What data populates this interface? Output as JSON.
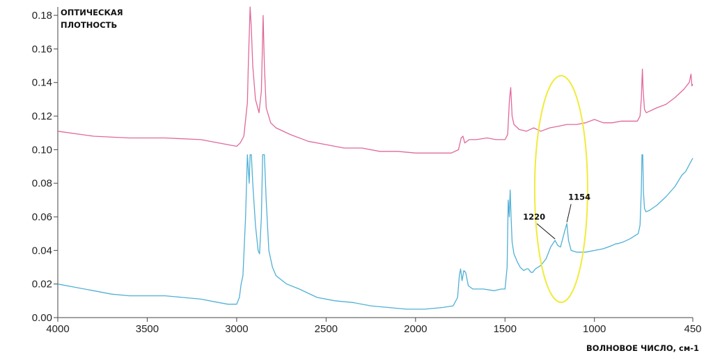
{
  "chart_data": {
    "type": "line",
    "ylabel_line1": "ОПТИЧЕСКАЯ",
    "ylabel_line2": "ПЛОТНОСТЬ",
    "xlabel": "ВОЛНОВОЕ ЧИСЛО, см-1",
    "xlim": [
      4000,
      450
    ],
    "ylim": [
      0,
      0.185
    ],
    "x_reversed": true,
    "grid": false,
    "x_ticks": [
      4000,
      3500,
      3000,
      2500,
      2000,
      1500,
      1000,
      450
    ],
    "x_tick_labels": [
      "4000",
      "3500",
      "3000",
      "2500",
      "2000",
      "1500",
      "1000",
      "450"
    ],
    "y_ticks": [
      0,
      0.02,
      0.04,
      0.06,
      0.08,
      0.1,
      0.12,
      0.14,
      0.16,
      0.18
    ],
    "y_tick_labels": [
      "0.00",
      "0.02",
      "0.04",
      "0.06",
      "0.08",
      "0.10",
      "0.12",
      "0.14",
      "0.16",
      "0.18"
    ],
    "series": [
      {
        "color": "#e0689a",
        "points": [
          [
            4000,
            0.111
          ],
          [
            3800,
            0.108
          ],
          [
            3600,
            0.107
          ],
          [
            3400,
            0.107
          ],
          [
            3200,
            0.106
          ],
          [
            3050,
            0.103
          ],
          [
            3000,
            0.102
          ],
          [
            2980,
            0.104
          ],
          [
            2960,
            0.108
          ],
          [
            2940,
            0.128
          ],
          [
            2935,
            0.15
          ],
          [
            2925,
            0.185
          ],
          [
            2918,
            0.172
          ],
          [
            2910,
            0.15
          ],
          [
            2895,
            0.13
          ],
          [
            2875,
            0.122
          ],
          [
            2862,
            0.135
          ],
          [
            2852,
            0.18
          ],
          [
            2845,
            0.15
          ],
          [
            2835,
            0.125
          ],
          [
            2810,
            0.116
          ],
          [
            2780,
            0.113
          ],
          [
            2700,
            0.109
          ],
          [
            2600,
            0.105
          ],
          [
            2500,
            0.103
          ],
          [
            2400,
            0.101
          ],
          [
            2300,
            0.101
          ],
          [
            2200,
            0.099
          ],
          [
            2100,
            0.099
          ],
          [
            2000,
            0.098
          ],
          [
            1900,
            0.098
          ],
          [
            1800,
            0.098
          ],
          [
            1760,
            0.1
          ],
          [
            1745,
            0.107
          ],
          [
            1735,
            0.108
          ],
          [
            1725,
            0.104
          ],
          [
            1700,
            0.106
          ],
          [
            1660,
            0.106
          ],
          [
            1600,
            0.107
          ],
          [
            1550,
            0.106
          ],
          [
            1500,
            0.106
          ],
          [
            1485,
            0.109
          ],
          [
            1475,
            0.13
          ],
          [
            1468,
            0.137
          ],
          [
            1460,
            0.12
          ],
          [
            1450,
            0.115
          ],
          [
            1420,
            0.112
          ],
          [
            1380,
            0.111
          ],
          [
            1340,
            0.113
          ],
          [
            1300,
            0.111
          ],
          [
            1250,
            0.113
          ],
          [
            1200,
            0.114
          ],
          [
            1154,
            0.115
          ],
          [
            1100,
            0.115
          ],
          [
            1050,
            0.116
          ],
          [
            1000,
            0.118
          ],
          [
            950,
            0.116
          ],
          [
            900,
            0.116
          ],
          [
            850,
            0.117
          ],
          [
            800,
            0.117
          ],
          [
            760,
            0.117
          ],
          [
            745,
            0.12
          ],
          [
            738,
            0.13
          ],
          [
            732,
            0.148
          ],
          [
            728,
            0.136
          ],
          [
            720,
            0.124
          ],
          [
            710,
            0.122
          ],
          [
            650,
            0.125
          ],
          [
            600,
            0.127
          ],
          [
            550,
            0.131
          ],
          [
            500,
            0.136
          ],
          [
            470,
            0.14
          ],
          [
            460,
            0.145
          ],
          [
            455,
            0.138
          ],
          [
            450,
            0.139
          ]
        ]
      },
      {
        "color": "#4fb0d6",
        "points": [
          [
            4000,
            0.02
          ],
          [
            3900,
            0.018
          ],
          [
            3800,
            0.016
          ],
          [
            3700,
            0.014
          ],
          [
            3600,
            0.013
          ],
          [
            3500,
            0.013
          ],
          [
            3400,
            0.013
          ],
          [
            3300,
            0.012
          ],
          [
            3200,
            0.011
          ],
          [
            3100,
            0.009
          ],
          [
            3050,
            0.008
          ],
          [
            3000,
            0.008
          ],
          [
            2985,
            0.012
          ],
          [
            2975,
            0.02
          ],
          [
            2965,
            0.025
          ],
          [
            2950,
            0.06
          ],
          [
            2940,
            0.097
          ],
          [
            2930,
            0.08
          ],
          [
            2925,
            0.097
          ],
          [
            2918,
            0.097
          ],
          [
            2910,
            0.08
          ],
          [
            2895,
            0.055
          ],
          [
            2880,
            0.04
          ],
          [
            2872,
            0.038
          ],
          [
            2862,
            0.06
          ],
          [
            2855,
            0.097
          ],
          [
            2845,
            0.097
          ],
          [
            2835,
            0.07
          ],
          [
            2820,
            0.04
          ],
          [
            2800,
            0.03
          ],
          [
            2780,
            0.025
          ],
          [
            2720,
            0.02
          ],
          [
            2650,
            0.017
          ],
          [
            2550,
            0.012
          ],
          [
            2450,
            0.01
          ],
          [
            2350,
            0.009
          ],
          [
            2250,
            0.007
          ],
          [
            2150,
            0.006
          ],
          [
            2050,
            0.005
          ],
          [
            1950,
            0.005
          ],
          [
            1850,
            0.006
          ],
          [
            1790,
            0.007
          ],
          [
            1765,
            0.012
          ],
          [
            1755,
            0.025
          ],
          [
            1748,
            0.029
          ],
          [
            1740,
            0.022
          ],
          [
            1730,
            0.028
          ],
          [
            1720,
            0.027
          ],
          [
            1705,
            0.019
          ],
          [
            1680,
            0.017
          ],
          [
            1620,
            0.017
          ],
          [
            1560,
            0.016
          ],
          [
            1520,
            0.017
          ],
          [
            1500,
            0.017
          ],
          [
            1488,
            0.03
          ],
          [
            1482,
            0.07
          ],
          [
            1476,
            0.06
          ],
          [
            1471,
            0.076
          ],
          [
            1466,
            0.06
          ],
          [
            1460,
            0.045
          ],
          [
            1450,
            0.038
          ],
          [
            1430,
            0.033
          ],
          [
            1415,
            0.03
          ],
          [
            1395,
            0.028
          ],
          [
            1380,
            0.029
          ],
          [
            1370,
            0.029
          ],
          [
            1355,
            0.027
          ],
          [
            1345,
            0.027
          ],
          [
            1330,
            0.029
          ],
          [
            1300,
            0.031
          ],
          [
            1270,
            0.035
          ],
          [
            1245,
            0.042
          ],
          [
            1220,
            0.046
          ],
          [
            1205,
            0.043
          ],
          [
            1190,
            0.042
          ],
          [
            1180,
            0.046
          ],
          [
            1165,
            0.052
          ],
          [
            1154,
            0.056
          ],
          [
            1145,
            0.046
          ],
          [
            1130,
            0.04
          ],
          [
            1100,
            0.039
          ],
          [
            1050,
            0.039
          ],
          [
            1000,
            0.04
          ],
          [
            950,
            0.041
          ],
          [
            900,
            0.043
          ],
          [
            880,
            0.044
          ],
          [
            870,
            0.044
          ],
          [
            840,
            0.045
          ],
          [
            800,
            0.047
          ],
          [
            770,
            0.049
          ],
          [
            755,
            0.05
          ],
          [
            745,
            0.055
          ],
          [
            738,
            0.075
          ],
          [
            734,
            0.097
          ],
          [
            730,
            0.097
          ],
          [
            726,
            0.075
          ],
          [
            720,
            0.065
          ],
          [
            712,
            0.063
          ],
          [
            690,
            0.064
          ],
          [
            650,
            0.067
          ],
          [
            600,
            0.072
          ],
          [
            550,
            0.078
          ],
          [
            510,
            0.085
          ],
          [
            490,
            0.087
          ],
          [
            470,
            0.091
          ],
          [
            460,
            0.093
          ],
          [
            450,
            0.095
          ]
        ]
      }
    ],
    "annotations": [
      {
        "text": "1220",
        "x": 1220,
        "y": 0.046,
        "color": "#111111"
      },
      {
        "text": "1154",
        "x": 1154,
        "y": 0.056,
        "color": "#111111"
      }
    ],
    "highlight_color": "#f0eb3c"
  }
}
